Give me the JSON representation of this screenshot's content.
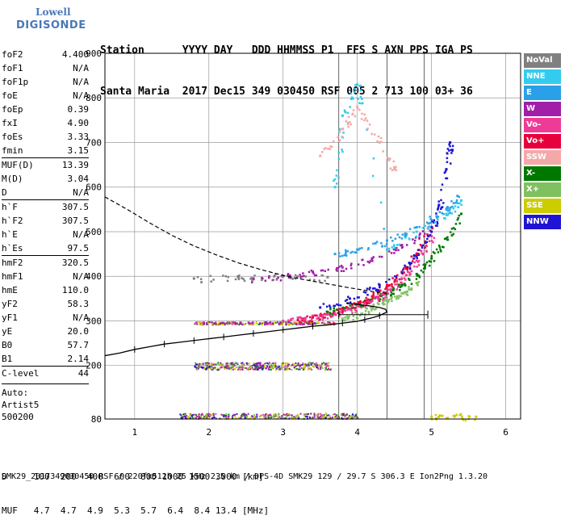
{
  "logo": {
    "brand": "Lowell",
    "product": "DIGISONDE"
  },
  "header": {
    "line1": "Station      YYYY DAY   DDD HHMMSS P1  FFS S AXN PPS IGA PS",
    "line2": "Santa Maria  2017 Dec15 349 030450 RSF 005 2 713 100 03+ 36"
  },
  "params": [
    {
      "name": "foF2",
      "value": "4.400",
      "sep": false
    },
    {
      "name": "foF1",
      "value": "N/A",
      "sep": false
    },
    {
      "name": "foF1p",
      "value": "N/A",
      "sep": false
    },
    {
      "name": "foE",
      "value": "N/A",
      "sep": false
    },
    {
      "name": "foEp",
      "value": "0.39",
      "sep": false
    },
    {
      "name": "fxI",
      "value": "4.90",
      "sep": false
    },
    {
      "name": "foEs",
      "value": "3.33",
      "sep": false
    },
    {
      "name": "fmin",
      "value": "3.15",
      "sep": false
    },
    {
      "name": "MUF(D)",
      "value": "13.39",
      "sep": true
    },
    {
      "name": "M(D)",
      "value": "3.04",
      "sep": false
    },
    {
      "name": "D",
      "value": "N/A",
      "sep": false
    },
    {
      "name": "h`F",
      "value": "307.5",
      "sep": true
    },
    {
      "name": "h`F2",
      "value": "307.5",
      "sep": false
    },
    {
      "name": "h`E",
      "value": "N/A",
      "sep": false
    },
    {
      "name": "h`Es",
      "value": "97.5",
      "sep": false
    },
    {
      "name": "hmF2",
      "value": "320.5",
      "sep": true
    },
    {
      "name": "hmF1",
      "value": "N/A",
      "sep": false
    },
    {
      "name": "hmE",
      "value": "110.0",
      "sep": false
    },
    {
      "name": "yF2",
      "value": "58.3",
      "sep": false
    },
    {
      "name": "yF1",
      "value": "N/A",
      "sep": false
    },
    {
      "name": "yE",
      "value": "20.0",
      "sep": false
    },
    {
      "name": "B0",
      "value": "57.7",
      "sep": false
    },
    {
      "name": "B1",
      "value": "2.14",
      "sep": false
    },
    {
      "name": "C-level",
      "value": "44",
      "sep": true
    }
  ],
  "autoscale": {
    "line1": "Auto:",
    "line2": "Artist5",
    "line3": "500200"
  },
  "legend": [
    {
      "label": "NoVal",
      "color": "#808080"
    },
    {
      "label": "NNE",
      "color": "#33ccee"
    },
    {
      "label": "E",
      "color": "#2aa0e8"
    },
    {
      "label": "W",
      "color": "#a01ea8"
    },
    {
      "label": "Vo-",
      "color": "#ee3c96"
    },
    {
      "label": "Vo+",
      "color": "#e8003c"
    },
    {
      "label": "SSW",
      "color": "#f4a8a8"
    },
    {
      "label": "X-",
      "color": "#007800"
    },
    {
      "label": "X+",
      "color": "#80c060"
    },
    {
      "label": "SSE",
      "color": "#cccc00"
    },
    {
      "label": "NNW",
      "color": "#1e14d2"
    }
  ],
  "dtable": {
    "line1": "D     100  200  400  600  800 1000 1500 3000 [km]",
    "line2": "MUF   4.7  4.7  4.9  5.3  5.7  6.4  8.4 13.4 [MHz]"
  },
  "footer": "SMK29_2017349030450.RSF / 220fx512h 25 kHz 2.5 km / DPS-4D SMK29 129 / 29.7 S 306.3 E Ion2Png 1.3.20",
  "chart_data": {
    "type": "scatter",
    "xlim": [
      0.6,
      6.2
    ],
    "ylim": [
      80,
      900
    ],
    "xticks": [
      1,
      2,
      3,
      4,
      5,
      6
    ],
    "yticks": [
      80,
      200,
      300,
      400,
      500,
      600,
      700,
      800,
      900
    ],
    "grid": true,
    "vertical_markers": [
      3.75,
      4.4,
      4.9
    ],
    "profile": {
      "x": [
        0.6,
        0.8,
        1.0,
        1.2,
        1.4,
        1.6,
        1.8,
        2.0,
        2.2,
        2.4,
        2.6,
        2.8,
        3.0,
        3.2,
        3.4,
        3.6,
        3.8,
        4.0,
        4.1,
        4.2,
        4.3,
        4.35,
        4.4,
        4.38,
        4.3,
        4.15,
        4.0,
        3.85
      ],
      "y": [
        222,
        228,
        236,
        242,
        248,
        252,
        256,
        260,
        264,
        268,
        272,
        276,
        280,
        284,
        288,
        291,
        295,
        299,
        303,
        307,
        312,
        316,
        320,
        326,
        330,
        334,
        337,
        340
      ]
    },
    "extrapolated_profile": {
      "x": [
        0.6,
        0.9,
        1.2,
        1.5,
        1.8,
        2.1,
        2.4,
        2.7,
        3.0,
        3.3,
        3.6,
        3.9,
        4.2,
        4.4
      ],
      "y": [
        578,
        550,
        520,
        492,
        468,
        448,
        430,
        415,
        402,
        392,
        383,
        374,
        366,
        362
      ]
    },
    "error_bar": {
      "x_from": 3.75,
      "x_to": 4.95,
      "y": 314
    },
    "series": [
      {
        "name": "X-",
        "x": [
          3.6,
          3.8,
          4.0,
          4.2,
          4.4,
          4.6,
          4.8,
          5.0,
          5.2,
          5.4
        ],
        "y": [
          320,
          328,
          336,
          348,
          362,
          380,
          405,
          440,
          485,
          540
        ]
      },
      {
        "name": "Vo+",
        "x": [
          3.2,
          3.4,
          3.6,
          3.8,
          4.0,
          4.2,
          4.4,
          4.6,
          4.8,
          5.0
        ],
        "y": [
          302,
          308,
          315,
          325,
          338,
          355,
          380,
          410,
          450,
          510
        ]
      },
      {
        "name": "Vo-",
        "x": [
          3.0,
          3.3,
          3.6,
          3.9,
          4.2,
          4.4,
          4.6,
          4.8,
          5.0
        ],
        "y": [
          300,
          306,
          314,
          326,
          345,
          365,
          395,
          435,
          490
        ]
      },
      {
        "name": "W",
        "x": [
          2.6,
          3.0,
          3.4,
          3.8,
          4.2,
          4.6,
          5.0
        ],
        "y": [
          395,
          400,
          410,
          420,
          440,
          470,
          510
        ]
      },
      {
        "name": "NNW",
        "x": [
          3.5,
          3.9,
          4.3,
          4.7,
          5.0,
          5.1,
          5.2,
          5.25
        ],
        "y": [
          330,
          350,
          380,
          430,
          500,
          560,
          640,
          700
        ]
      },
      {
        "name": "NNE",
        "x": [
          3.7,
          3.8,
          4.0,
          4.4,
          4.8,
          5.2,
          5.4
        ],
        "y": [
          600,
          760,
          830,
          460,
          500,
          540,
          570
        ]
      },
      {
        "name": "E",
        "x": [
          3.7,
          4.0,
          4.4,
          4.8,
          5.2,
          5.35
        ],
        "y": [
          450,
          460,
          480,
          510,
          550,
          580
        ]
      },
      {
        "name": "X+",
        "x": [
          3.8,
          4.0,
          4.2,
          4.4,
          4.6,
          4.8
        ],
        "y": [
          305,
          315,
          330,
          345,
          362,
          385
        ]
      },
      {
        "name": "SSW",
        "x": [
          3.5,
          3.8,
          4.0,
          4.3,
          4.5
        ],
        "y": [
          670,
          730,
          780,
          700,
          640
        ]
      },
      {
        "name": "SSE",
        "x": [
          5.0,
          5.3,
          5.6
        ],
        "y": [
          85,
          87,
          85
        ]
      },
      {
        "name": "NoVal",
        "x": [
          1.8,
          2.4,
          3.0,
          3.6
        ],
        "y": [
          395,
          398,
          400,
          398
        ]
      }
    ],
    "es_layer": {
      "x_from": 1.8,
      "x_to": 3.65,
      "y": 200
    },
    "f1_trace": {
      "x_from": 1.8,
      "x_to": 3.7,
      "y": 296
    },
    "bottom_trace": {
      "x_from": 1.6,
      "x_to": 4.0,
      "y": 88
    }
  }
}
